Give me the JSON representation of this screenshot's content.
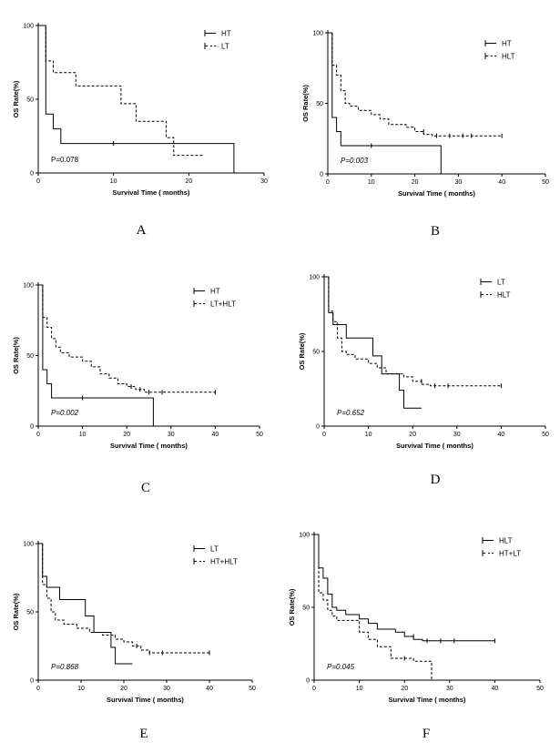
{
  "chart_data": [
    {
      "panel": "A",
      "type": "line",
      "xlabel": "Survival Time ( months)",
      "ylabel": "OS Rate(%)",
      "xlim": [
        0,
        30
      ],
      "ylim": [
        0,
        100
      ],
      "xticks": [
        0,
        10,
        20,
        30
      ],
      "yticks": [
        0,
        50,
        100
      ],
      "p_value": "P=0.078",
      "p_italic": false,
      "series": [
        {
          "name": "HT",
          "dashed": false,
          "x": [
            0,
            1,
            1,
            2,
            2,
            3,
            3,
            26,
            26
          ],
          "y": [
            100,
            100,
            40,
            40,
            30,
            30,
            20,
            20,
            0
          ],
          "censored": [
            [
              10,
              20
            ]
          ]
        },
        {
          "name": "LT",
          "dashed": true,
          "x": [
            0,
            1,
            1,
            2,
            2,
            5,
            5,
            11,
            11,
            13,
            13,
            17,
            17,
            18,
            18,
            22
          ],
          "y": [
            100,
            100,
            76,
            76,
            68,
            68,
            59,
            59,
            47,
            47,
            35,
            35,
            24,
            24,
            12,
            12
          ],
          "censored": []
        }
      ]
    },
    {
      "panel": "B",
      "type": "line",
      "xlabel": "Survival Time ( months)",
      "ylabel": "OS Rate(%)",
      "xlim": [
        0,
        50
      ],
      "ylim": [
        0,
        100
      ],
      "xticks": [
        0,
        10,
        20,
        30,
        40,
        50
      ],
      "yticks": [
        0,
        50,
        100
      ],
      "p_value": "P=0.003",
      "p_italic": true,
      "series": [
        {
          "name": "HT",
          "dashed": false,
          "x": [
            0,
            1,
            1,
            2,
            2,
            3,
            3,
            26,
            26
          ],
          "y": [
            100,
            100,
            40,
            40,
            30,
            30,
            20,
            20,
            0
          ],
          "censored": [
            [
              10,
              20
            ]
          ]
        },
        {
          "name": "HLT",
          "dashed": true,
          "x": [
            0,
            1,
            1,
            2,
            2,
            3,
            3,
            4,
            4,
            5,
            5,
            7,
            7,
            10,
            10,
            12,
            12,
            14,
            14,
            18,
            18,
            20,
            20,
            22,
            22,
            24,
            24,
            40
          ],
          "y": [
            100,
            100,
            77,
            77,
            70,
            70,
            59,
            59,
            50,
            50,
            48,
            48,
            45,
            45,
            42,
            42,
            39,
            39,
            35,
            35,
            33,
            33,
            30,
            30,
            28,
            28,
            27,
            27
          ],
          "censored": [
            [
              22,
              30
            ],
            [
              25,
              27
            ],
            [
              28,
              27
            ],
            [
              31,
              27
            ],
            [
              33,
              27
            ],
            [
              40,
              27
            ]
          ]
        }
      ]
    },
    {
      "panel": "C",
      "type": "line",
      "xlabel": "Survival Time ( months)",
      "ylabel": "OS Rate(%)",
      "xlim": [
        0,
        50
      ],
      "ylim": [
        0,
        100
      ],
      "xticks": [
        0,
        10,
        20,
        30,
        40,
        50
      ],
      "yticks": [
        0,
        50,
        100
      ],
      "p_value": "P=0.002",
      "p_italic": true,
      "series": [
        {
          "name": "HT",
          "dashed": false,
          "x": [
            0,
            1,
            1,
            2,
            2,
            3,
            3,
            26,
            26
          ],
          "y": [
            100,
            100,
            40,
            40,
            30,
            30,
            20,
            20,
            0
          ],
          "censored": [
            [
              10,
              20
            ]
          ]
        },
        {
          "name": "LT+HLT",
          "dashed": true,
          "x": [
            0,
            1,
            1,
            2,
            2,
            3,
            3,
            4,
            4,
            5,
            5,
            7,
            7,
            10,
            10,
            12,
            12,
            14,
            14,
            16,
            16,
            18,
            18,
            20,
            20,
            22,
            22,
            24,
            24,
            40
          ],
          "y": [
            100,
            100,
            77,
            77,
            70,
            70,
            62,
            62,
            56,
            56,
            52,
            52,
            49,
            49,
            46,
            46,
            42,
            42,
            37,
            37,
            34,
            34,
            30,
            30,
            28,
            28,
            26,
            26,
            24,
            24
          ],
          "censored": [
            [
              21,
              28
            ],
            [
              23,
              26
            ],
            [
              25,
              24
            ],
            [
              28,
              24
            ],
            [
              40,
              24
            ]
          ]
        }
      ]
    },
    {
      "panel": "D",
      "type": "line",
      "xlabel": "Survival Time ( months)",
      "ylabel": "OS Rate(%)",
      "xlim": [
        0,
        50
      ],
      "ylim": [
        0,
        100
      ],
      "xticks": [
        0,
        10,
        20,
        30,
        40,
        50
      ],
      "yticks": [
        0,
        50,
        100
      ],
      "p_value": "P=0.652",
      "p_italic": true,
      "series": [
        {
          "name": "LT",
          "dashed": false,
          "x": [
            0,
            1,
            1,
            2,
            2,
            5,
            5,
            11,
            11,
            13,
            13,
            17,
            17,
            18,
            18,
            22
          ],
          "y": [
            100,
            100,
            76,
            76,
            68,
            68,
            59,
            59,
            47,
            47,
            35,
            35,
            24,
            24,
            12,
            12
          ],
          "censored": []
        },
        {
          "name": "HLT",
          "dashed": true,
          "x": [
            0,
            1,
            1,
            2,
            2,
            3,
            3,
            4,
            4,
            5,
            5,
            7,
            7,
            10,
            10,
            12,
            12,
            14,
            14,
            18,
            18,
            20,
            20,
            22,
            22,
            24,
            24,
            40
          ],
          "y": [
            100,
            100,
            77,
            77,
            70,
            70,
            59,
            59,
            50,
            50,
            48,
            48,
            45,
            45,
            42,
            42,
            39,
            39,
            35,
            35,
            33,
            33,
            30,
            30,
            28,
            28,
            27,
            27
          ],
          "censored": [
            [
              22,
              30
            ],
            [
              25,
              27
            ],
            [
              28,
              27
            ],
            [
              40,
              27
            ]
          ]
        }
      ]
    },
    {
      "panel": "E",
      "type": "line",
      "xlabel": "Survival Time ( months)",
      "ylabel": "OS Rate(%)",
      "xlim": [
        0,
        50
      ],
      "ylim": [
        0,
        100
      ],
      "xticks": [
        0,
        10,
        20,
        30,
        40,
        50
      ],
      "yticks": [
        0,
        50,
        100
      ],
      "p_value": "P=0.868",
      "p_italic": true,
      "series": [
        {
          "name": "LT",
          "dashed": false,
          "x": [
            0,
            1,
            1,
            2,
            2,
            5,
            5,
            11,
            11,
            13,
            13,
            17,
            17,
            18,
            18,
            22
          ],
          "y": [
            100,
            100,
            76,
            76,
            68,
            68,
            59,
            59,
            47,
            47,
            35,
            35,
            24,
            24,
            12,
            12
          ],
          "censored": []
        },
        {
          "name": "HT+HLT",
          "dashed": true,
          "x": [
            0,
            1,
            1,
            2,
            2,
            3,
            3,
            4,
            4,
            6,
            6,
            9,
            9,
            12,
            12,
            15,
            15,
            18,
            18,
            20,
            20,
            22,
            22,
            24,
            24,
            26,
            26,
            40
          ],
          "y": [
            100,
            100,
            70,
            70,
            60,
            60,
            50,
            50,
            44,
            44,
            41,
            41,
            38,
            38,
            35,
            35,
            33,
            33,
            30,
            30,
            28,
            28,
            25,
            25,
            22,
            22,
            20,
            20
          ],
          "censored": [
            [
              23,
              25
            ],
            [
              26,
              20
            ],
            [
              29,
              20
            ],
            [
              40,
              20
            ]
          ]
        }
      ]
    },
    {
      "panel": "F",
      "type": "line",
      "xlabel": "Survival Time ( months)",
      "ylabel": "OS Rate(%)",
      "xlim": [
        0,
        50
      ],
      "ylim": [
        0,
        100
      ],
      "xticks": [
        0,
        10,
        20,
        30,
        40,
        50
      ],
      "yticks": [
        0,
        50,
        100
      ],
      "p_value": "P=0.045",
      "p_italic": true,
      "series": [
        {
          "name": "HLT",
          "dashed": false,
          "x": [
            0,
            1,
            1,
            2,
            2,
            3,
            3,
            4,
            4,
            5,
            5,
            7,
            7,
            10,
            10,
            12,
            12,
            14,
            14,
            18,
            18,
            20,
            20,
            22,
            22,
            24,
            24,
            40
          ],
          "y": [
            100,
            100,
            77,
            77,
            70,
            70,
            59,
            59,
            50,
            50,
            48,
            48,
            45,
            45,
            42,
            42,
            39,
            39,
            35,
            35,
            33,
            33,
            30,
            30,
            28,
            28,
            27,
            27
          ],
          "censored": [
            [
              22,
              30
            ],
            [
              25,
              27
            ],
            [
              28,
              27
            ],
            [
              31,
              27
            ],
            [
              40,
              27
            ]
          ]
        },
        {
          "name": "HT+LT",
          "dashed": true,
          "x": [
            0,
            1,
            1,
            2,
            2,
            3,
            3,
            4,
            4,
            5,
            5,
            10,
            10,
            12,
            12,
            14,
            14,
            17,
            17,
            22,
            22,
            26,
            26
          ],
          "y": [
            100,
            100,
            60,
            60,
            55,
            55,
            48,
            48,
            44,
            44,
            41,
            41,
            33,
            33,
            28,
            28,
            23,
            23,
            15,
            15,
            13,
            13,
            0
          ],
          "censored": [
            [
              20,
              15
            ]
          ]
        }
      ]
    }
  ]
}
